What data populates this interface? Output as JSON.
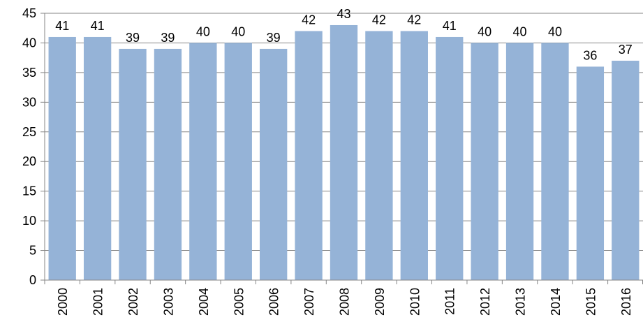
{
  "chart_data": {
    "type": "bar",
    "title": "",
    "xlabel": "",
    "ylabel": "",
    "categories": [
      "2000",
      "2001",
      "2002",
      "2003",
      "2004",
      "2005",
      "2006",
      "2007",
      "2008",
      "2009",
      "2010",
      "2011",
      "2012",
      "2013",
      "2014",
      "2015",
      "2016"
    ],
    "values": [
      41,
      41,
      39,
      39,
      40,
      40,
      39,
      42,
      43,
      42,
      42,
      41,
      40,
      40,
      40,
      36,
      37
    ],
    "ylim": [
      0,
      45
    ],
    "yticks": [
      0,
      5,
      10,
      15,
      20,
      25,
      30,
      35,
      40,
      45
    ],
    "grid": true,
    "legend": "none",
    "data_labels": true,
    "bar_color": "#95B3D7"
  }
}
